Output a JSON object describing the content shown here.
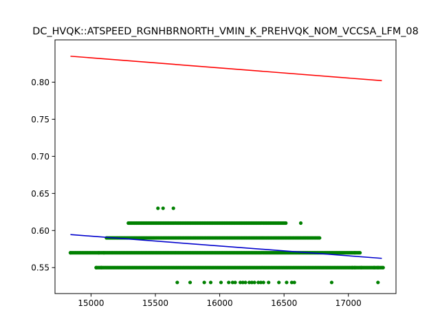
{
  "chart_data": {
    "type": "scatter",
    "title": "DC_HVQK::ATSPEED_RGNHBRNORTH_VMIN_K_PREHVQK_NOM_VCCSA_LFM_08",
    "xlabel": "",
    "ylabel": "",
    "xlim": [
      14720,
      17370
    ],
    "ylim": [
      0.515,
      0.857
    ],
    "x_ticks": [
      15000,
      15500,
      16000,
      16500,
      17000
    ],
    "x_tick_labels": [
      "15000",
      "15500",
      "16000",
      "16500",
      "17000"
    ],
    "y_ticks": [
      0.55,
      0.6,
      0.65,
      0.7,
      0.75,
      0.8
    ],
    "y_tick_labels": [
      "0.55",
      "0.60",
      "0.65",
      "0.70",
      "0.75",
      "0.80"
    ],
    "grid": false,
    "legend": "none",
    "colors": {
      "points": "#008000",
      "upper_line": "#ff0000",
      "lower_line": "#0000cd"
    },
    "point_bands": [
      {
        "y": 0.63,
        "x": [
          15520,
          15560,
          15640
        ]
      },
      {
        "y": 0.61,
        "x_min": 15290,
        "x_max": 16520,
        "extra_x": [
          16630
        ]
      },
      {
        "y": 0.59,
        "x_min": 15120,
        "x_max": 16780
      },
      {
        "y": 0.57,
        "x_min": 14840,
        "x_max": 17090,
        "sparse_x": [
          14840,
          15060,
          15100,
          17050
        ]
      },
      {
        "y": 0.55,
        "x_min": 15040,
        "x_max": 17270,
        "sparse_x": [
          15040,
          15080,
          17030,
          17050,
          17100,
          17200,
          17230,
          17270
        ]
      },
      {
        "y": 0.53,
        "x": [
          15670,
          15770,
          15880,
          15930,
          16010,
          16070,
          16100,
          16120,
          16160,
          16180,
          16200,
          16230,
          16250,
          16270,
          16300,
          16320,
          16340,
          16380,
          16460,
          16520,
          16560,
          16580,
          16870,
          17230
        ]
      }
    ],
    "series": [
      {
        "type": "line",
        "x": [
          14840,
          17260
        ],
        "y": [
          0.835,
          0.802
        ]
      },
      {
        "type": "line",
        "x": [
          14840,
          17260
        ],
        "y": [
          0.5945,
          0.5625
        ]
      }
    ]
  }
}
